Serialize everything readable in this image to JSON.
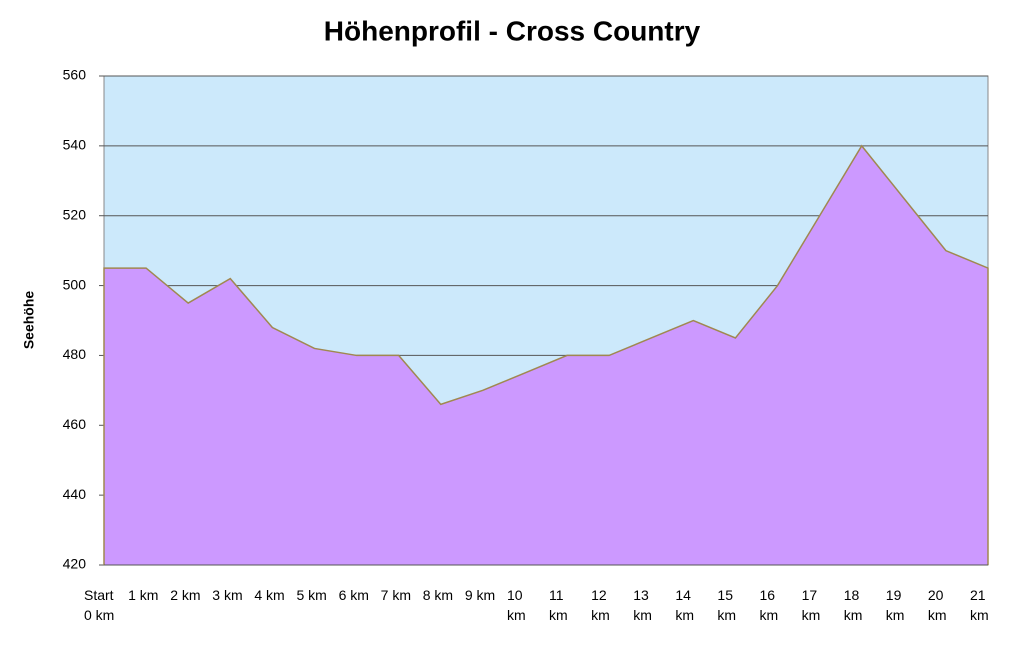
{
  "chart_data": {
    "type": "area",
    "title": "Höhenprofil - Cross Country",
    "y_label": "Seehöhe",
    "categories": [
      "Start 0 km",
      "1 km",
      "2 km",
      "3 km",
      "4 km",
      "5 km",
      "6 km",
      "7 km",
      "8 km",
      "9 km",
      "10 km",
      "11 km",
      "12 km",
      "13 km",
      "14 km",
      "15 km",
      "16 km",
      "17 km",
      "18 km",
      "19 km",
      "20 km",
      "21 km"
    ],
    "values": [
      505,
      505,
      495,
      502,
      488,
      482,
      480,
      480,
      466,
      470,
      475,
      480,
      480,
      485,
      490,
      485,
      500,
      520,
      540,
      525,
      510,
      505
    ],
    "color": "#cc99ff",
    "line_color": "#a08850",
    "plot_background": "#cce9fb",
    "ylim": [
      420,
      560
    ],
    "yticks": [
      420,
      440,
      460,
      480,
      500,
      520,
      540,
      560
    ],
    "grid": true
  }
}
